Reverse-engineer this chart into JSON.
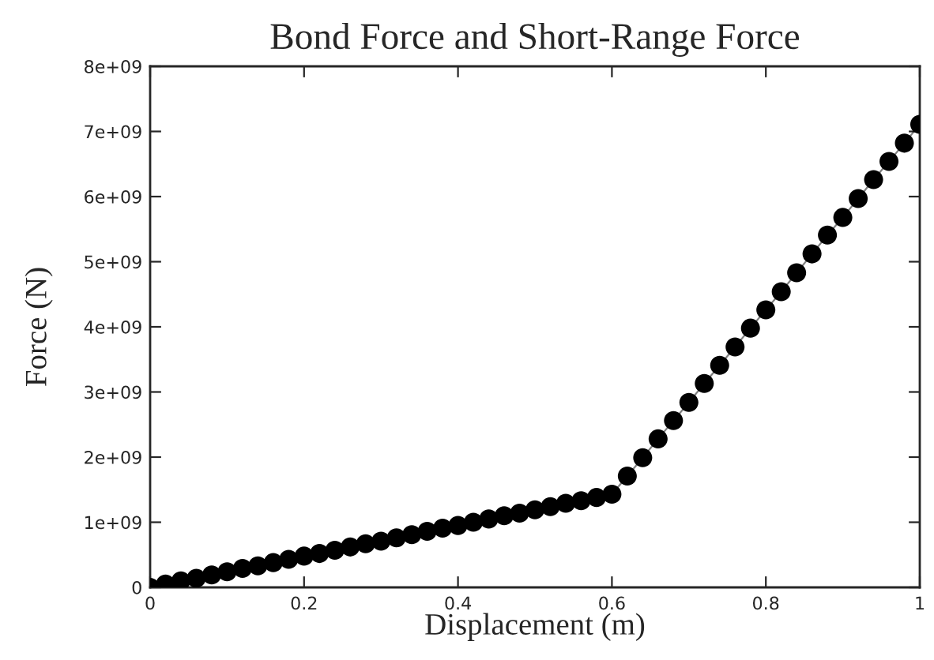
{
  "chart_data": {
    "type": "line",
    "title": "Bond Force and Short-Range Force",
    "xlabel": "Displacement (m)",
    "ylabel": "Force (N)",
    "x": [
      0,
      0.02,
      0.04,
      0.06,
      0.08,
      0.1,
      0.12,
      0.14,
      0.16,
      0.18,
      0.2,
      0.22,
      0.24,
      0.26,
      0.28,
      0.3,
      0.32,
      0.34,
      0.36,
      0.38,
      0.4,
      0.42,
      0.44,
      0.46,
      0.48,
      0.5,
      0.52,
      0.54,
      0.56,
      0.58,
      0.6,
      0.62,
      0.64,
      0.66,
      0.68,
      0.7,
      0.72,
      0.74,
      0.76,
      0.78,
      0.8,
      0.82,
      0.84,
      0.86,
      0.88,
      0.9,
      0.92,
      0.94,
      0.96,
      0.98,
      1
    ],
    "series": [
      {
        "color": "#000000",
        "values": [
          0,
          50000000.0,
          100000000.0,
          140000000.0,
          190000000.0,
          240000000.0,
          290000000.0,
          330000000.0,
          380000000.0,
          430000000.0,
          480000000.0,
          520000000.0,
          570000000.0,
          620000000.0,
          670000000.0,
          710000000.0,
          760000000.0,
          810000000.0,
          860000000.0,
          910000000.0,
          950000000.0,
          1000000000.0,
          1050000000.0,
          1100000000.0,
          1140000000.0,
          1190000000.0,
          1240000000.0,
          1290000000.0,
          1330000000.0,
          1380000000.0,
          1430000000.0,
          1710000000.0,
          1990000000.0,
          2280000000.0,
          2560000000.0,
          2840000000.0,
          3130000000.0,
          3410000000.0,
          3690000000.0,
          3980000000.0,
          4260000000.0,
          4540000000.0,
          4830000000.0,
          5120000000.0,
          5410000000.0,
          5680000000.0,
          5970000000.0,
          6260000000.0,
          6540000000.0,
          6820000000.0,
          7110000000.0
        ]
      }
    ],
    "xlim": [
      0,
      1
    ],
    "xticks": [
      0,
      0.2,
      0.4,
      0.6,
      0.8,
      1
    ],
    "ylim": [
      0,
      8000000000.0
    ],
    "yticks": [
      0,
      {
        "value": 1000000000.0,
        "label": "1e+09"
      },
      {
        "value": 2000000000.0,
        "label": "2e+09"
      },
      {
        "value": 3000000000.0,
        "label": "3e+09"
      },
      {
        "value": 4000000000.0,
        "label": "4e+09"
      },
      {
        "value": 5000000000.0,
        "label": "5e+09"
      },
      {
        "value": 6000000000.0,
        "label": "6e+09"
      },
      {
        "value": 7000000000.0,
        "label": "7e+09"
      },
      {
        "value": 8000000000.0,
        "label": "8e+09"
      }
    ],
    "marker": "circle",
    "line_style": "solid",
    "grid": false,
    "legend": false
  }
}
